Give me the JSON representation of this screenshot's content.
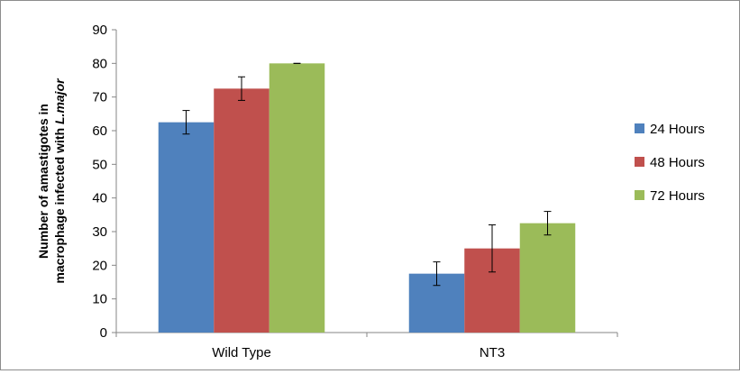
{
  "chart_data": {
    "type": "bar",
    "categories": [
      "Wild Type",
      "NT3"
    ],
    "series": [
      {
        "name": "24 Hours",
        "color": "#4F81BD",
        "values": [
          62.5,
          17.5
        ],
        "errors": [
          3.5,
          3.5
        ]
      },
      {
        "name": "48 Hours",
        "color": "#C0504D",
        "values": [
          72.5,
          25
        ],
        "errors": [
          3.5,
          7
        ]
      },
      {
        "name": "72 Hours",
        "color": "#9BBB59",
        "values": [
          80,
          32.5
        ],
        "errors": [
          0,
          3.5
        ]
      }
    ],
    "ylabel_line1": "Number of amastigotes in",
    "ylabel_line2_prefix": "macrophage infected with ",
    "ylabel_line2_italic": "L.major",
    "ylim": [
      0,
      90
    ],
    "yticks": [
      0,
      10,
      20,
      30,
      40,
      50,
      60,
      70,
      80,
      90
    ],
    "grid": false,
    "legend_position": "right"
  }
}
